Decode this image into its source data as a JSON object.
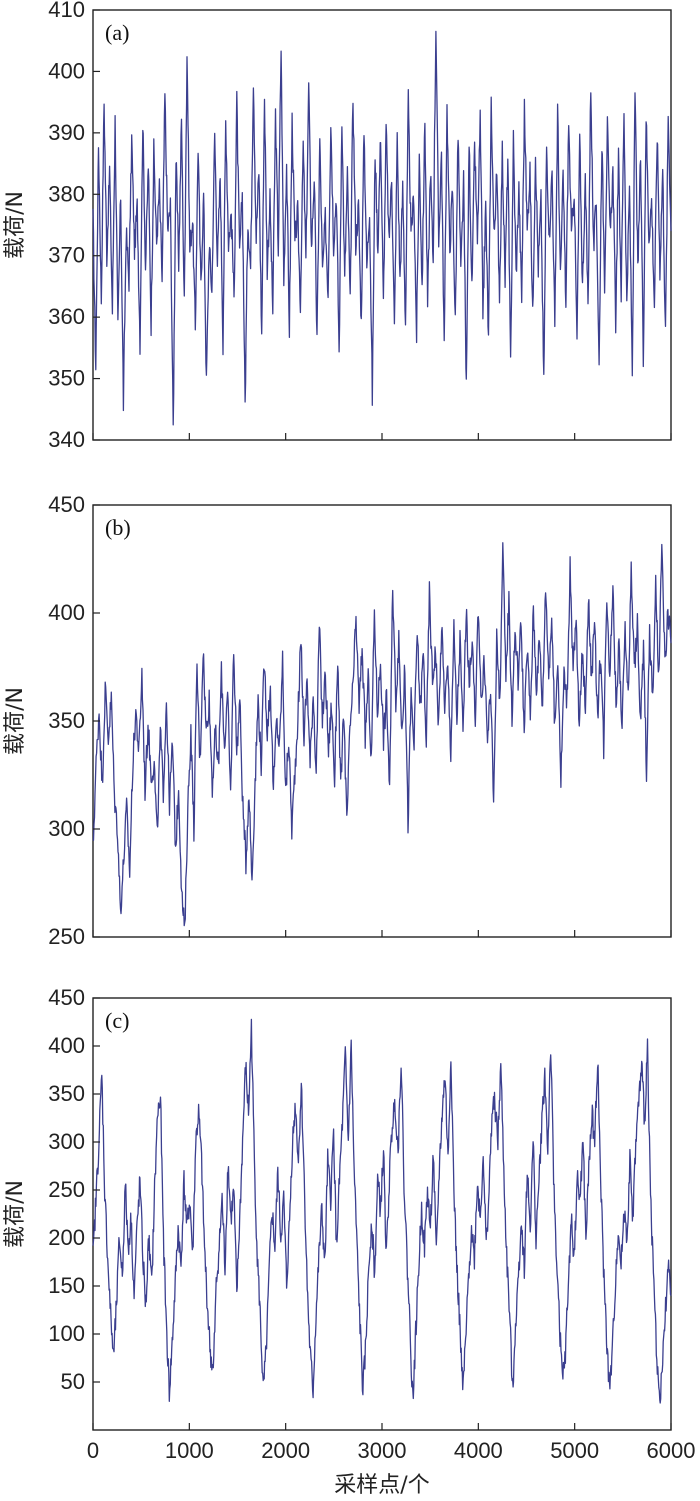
{
  "chart_data": [
    {
      "type": "line",
      "panel_label": "(a)",
      "ylabel": "载荷/N",
      "xlabel": "",
      "xlim": [
        0,
        6000
      ],
      "ylim": [
        340,
        410
      ],
      "yticks": [
        340,
        350,
        360,
        370,
        380,
        390,
        400,
        410
      ],
      "xticks": [
        0,
        1000,
        2000,
        3000,
        4000,
        5000,
        6000
      ],
      "xtick_labels_shown": false,
      "grid": false,
      "color": "#3b3f8f",
      "series": [
        {
          "x_start": 0,
          "x_end": 6000,
          "values": [
            376,
            352,
            388,
            363,
            395,
            370,
            384,
            361,
            392,
            358,
            380,
            346,
            374,
            366,
            389,
            371,
            378,
            356,
            392,
            368,
            385,
            359,
            387,
            372,
            381,
            366,
            396,
            374,
            378,
            342,
            386,
            369,
            392,
            362,
            403,
            371,
            376,
            358,
            388,
            365,
            380,
            349,
            372,
            364,
            390,
            369,
            383,
            356,
            392,
            372,
            377,
            363,
            395,
            370,
            380,
            346,
            376,
            368,
            399,
            373,
            384,
            357,
            396,
            368,
            379,
            361,
            393,
            371,
            404,
            366,
            385,
            358,
            392,
            372,
            377,
            362,
            388,
            369,
            398,
            371,
            383,
            356,
            389,
            367,
            376,
            364,
            392,
            372,
            380,
            354,
            393,
            366,
            383,
            362,
            396,
            372,
            378,
            359,
            391,
            368,
            378,
            347,
            387,
            371,
            390,
            362,
            391,
            372,
            383,
            358,
            389,
            366,
            381,
            359,
            395,
            373,
            380,
            357,
            386,
            365,
            392,
            362,
            384,
            369,
            408,
            372,
            387,
            355,
            394,
            371,
            381,
            359,
            390,
            367,
            382,
            348,
            389,
            364,
            388,
            372,
            392,
            361,
            378,
            356,
            395,
            373,
            383,
            364,
            387,
            366,
            386,
            352,
            389,
            367,
            381,
            363,
            394,
            374,
            384,
            360,
            387,
            368,
            379,
            349,
            388,
            373,
            384,
            358,
            394,
            366,
            383,
            362,
            392,
            373,
            381,
            356,
            389,
            365,
            382,
            362,
            398,
            371,
            379,
            352,
            389,
            366,
            391,
            373,
            384,
            359,
            386,
            364,
            394,
            362,
            381,
            351,
            397,
            367,
            386,
            354,
            393,
            373,
            379,
            362,
            390,
            368,
            384,
            357,
            393,
            374
          ]
        }
      ]
    },
    {
      "type": "line",
      "panel_label": "(b)",
      "ylabel": "载荷/N",
      "xlabel": "",
      "xlim": [
        0,
        6000
      ],
      "ylim": [
        250,
        450
      ],
      "yticks": [
        250,
        300,
        350,
        400,
        450
      ],
      "xticks": [
        0,
        1000,
        2000,
        3000,
        4000,
        5000,
        6000
      ],
      "xtick_labels_shown": false,
      "grid": false,
      "color": "#3b3f8f",
      "series": [
        {
          "x_start": 0,
          "x_end": 6000,
          "values": [
            290,
            330,
            355,
            320,
            365,
            342,
            360,
            315,
            300,
            262,
            285,
            310,
            280,
            330,
            355,
            335,
            372,
            318,
            348,
            325,
            330,
            296,
            345,
            318,
            360,
            312,
            340,
            290,
            320,
            270,
            252,
            310,
            345,
            300,
            375,
            330,
            384,
            345,
            360,
            320,
            345,
            328,
            372,
            338,
            362,
            315,
            384,
            336,
            360,
            310,
            285,
            318,
            276,
            322,
            360,
            330,
            378,
            345,
            366,
            318,
            350,
            338,
            378,
            316,
            342,
            300,
            326,
            352,
            388,
            342,
            370,
            330,
            364,
            326,
            395,
            350,
            372,
            336,
            358,
            322,
            380,
            318,
            355,
            302,
            346,
            365,
            398,
            356,
            385,
            342,
            370,
            330,
            400,
            354,
            378,
            342,
            362,
            318,
            412,
            360,
            386,
            345,
            375,
            302,
            362,
            338,
            392,
            355,
            382,
            340,
            410,
            368,
            384,
            348,
            394,
            358,
            374,
            336,
            392,
            350,
            388,
            344,
            402,
            366,
            390,
            346,
            404,
            358,
            378,
            340,
            366,
            312,
            388,
            360,
            428,
            372,
            406,
            352,
            392,
            370,
            396,
            344,
            385,
            352,
            402,
            366,
            388,
            356,
            414,
            372,
            398,
            345,
            380,
            322,
            372,
            360,
            420,
            374,
            396,
            346,
            382,
            358,
            408,
            370,
            394,
            352,
            382,
            338,
            410,
            372,
            414,
            358,
            386,
            345,
            395,
            360,
            420,
            374,
            394,
            348,
            384,
            328,
            390,
            360,
            412,
            370,
            430,
            376,
            400,
            386
          ]
        }
      ]
    },
    {
      "type": "line",
      "panel_label": "(c)",
      "ylabel": "载荷/N",
      "xlabel": "采样点/个",
      "xlim": [
        0,
        6000
      ],
      "ylim": [
        0,
        450
      ],
      "yticks": [
        50,
        100,
        150,
        200,
        250,
        300,
        350,
        400,
        450
      ],
      "xticks": [
        0,
        1000,
        2000,
        3000,
        4000,
        5000,
        6000
      ],
      "xtick_labels_shown": true,
      "grid": false,
      "color": "#3b3f8f",
      "series": [
        {
          "x_start": 0,
          "x_end": 6000,
          "values": [
            180,
            240,
            300,
            370,
            250,
            180,
            120,
            75,
            130,
            200,
            160,
            255,
            190,
            220,
            140,
            210,
            260,
            180,
            130,
            200,
            150,
            250,
            330,
            345,
            200,
            110,
            40,
            90,
            150,
            210,
            170,
            260,
            210,
            240,
            180,
            300,
            330,
            280,
            190,
            130,
            80,
            60,
            150,
            190,
            240,
            170,
            280,
            220,
            250,
            140,
            220,
            300,
            380,
            330,
            420,
            280,
            180,
            120,
            40,
            80,
            160,
            230,
            190,
            270,
            200,
            240,
            150,
            220,
            300,
            340,
            280,
            360,
            260,
            150,
            80,
            40,
            120,
            180,
            230,
            170,
            280,
            240,
            310,
            190,
            260,
            320,
            390,
            300,
            400,
            270,
            190,
            110,
            40,
            90,
            170,
            220,
            160,
            260,
            230,
            290,
            180,
            260,
            320,
            340,
            290,
            390,
            260,
            180,
            110,
            30,
            100,
            170,
            230,
            190,
            250,
            210,
            290,
            180,
            270,
            330,
            370,
            280,
            395,
            250,
            170,
            110,
            40,
            90,
            160,
            210,
            180,
            260,
            220,
            290,
            190,
            250,
            330,
            340,
            300,
            380,
            270,
            180,
            120,
            40,
            110,
            160,
            220,
            170,
            270,
            210,
            300,
            200,
            260,
            320,
            370,
            290,
            400,
            260,
            180,
            110,
            50,
            80,
            150,
            220,
            180,
            260,
            240,
            300,
            200,
            270,
            330,
            300,
            390,
            260,
            170,
            100,
            40,
            80,
            150,
            210,
            170,
            230,
            200,
            280,
            220,
            300,
            340,
            380,
            320,
            400,
            250,
            160,
            90,
            30,
            60,
            120,
            170,
            140
          ]
        }
      ]
    }
  ]
}
